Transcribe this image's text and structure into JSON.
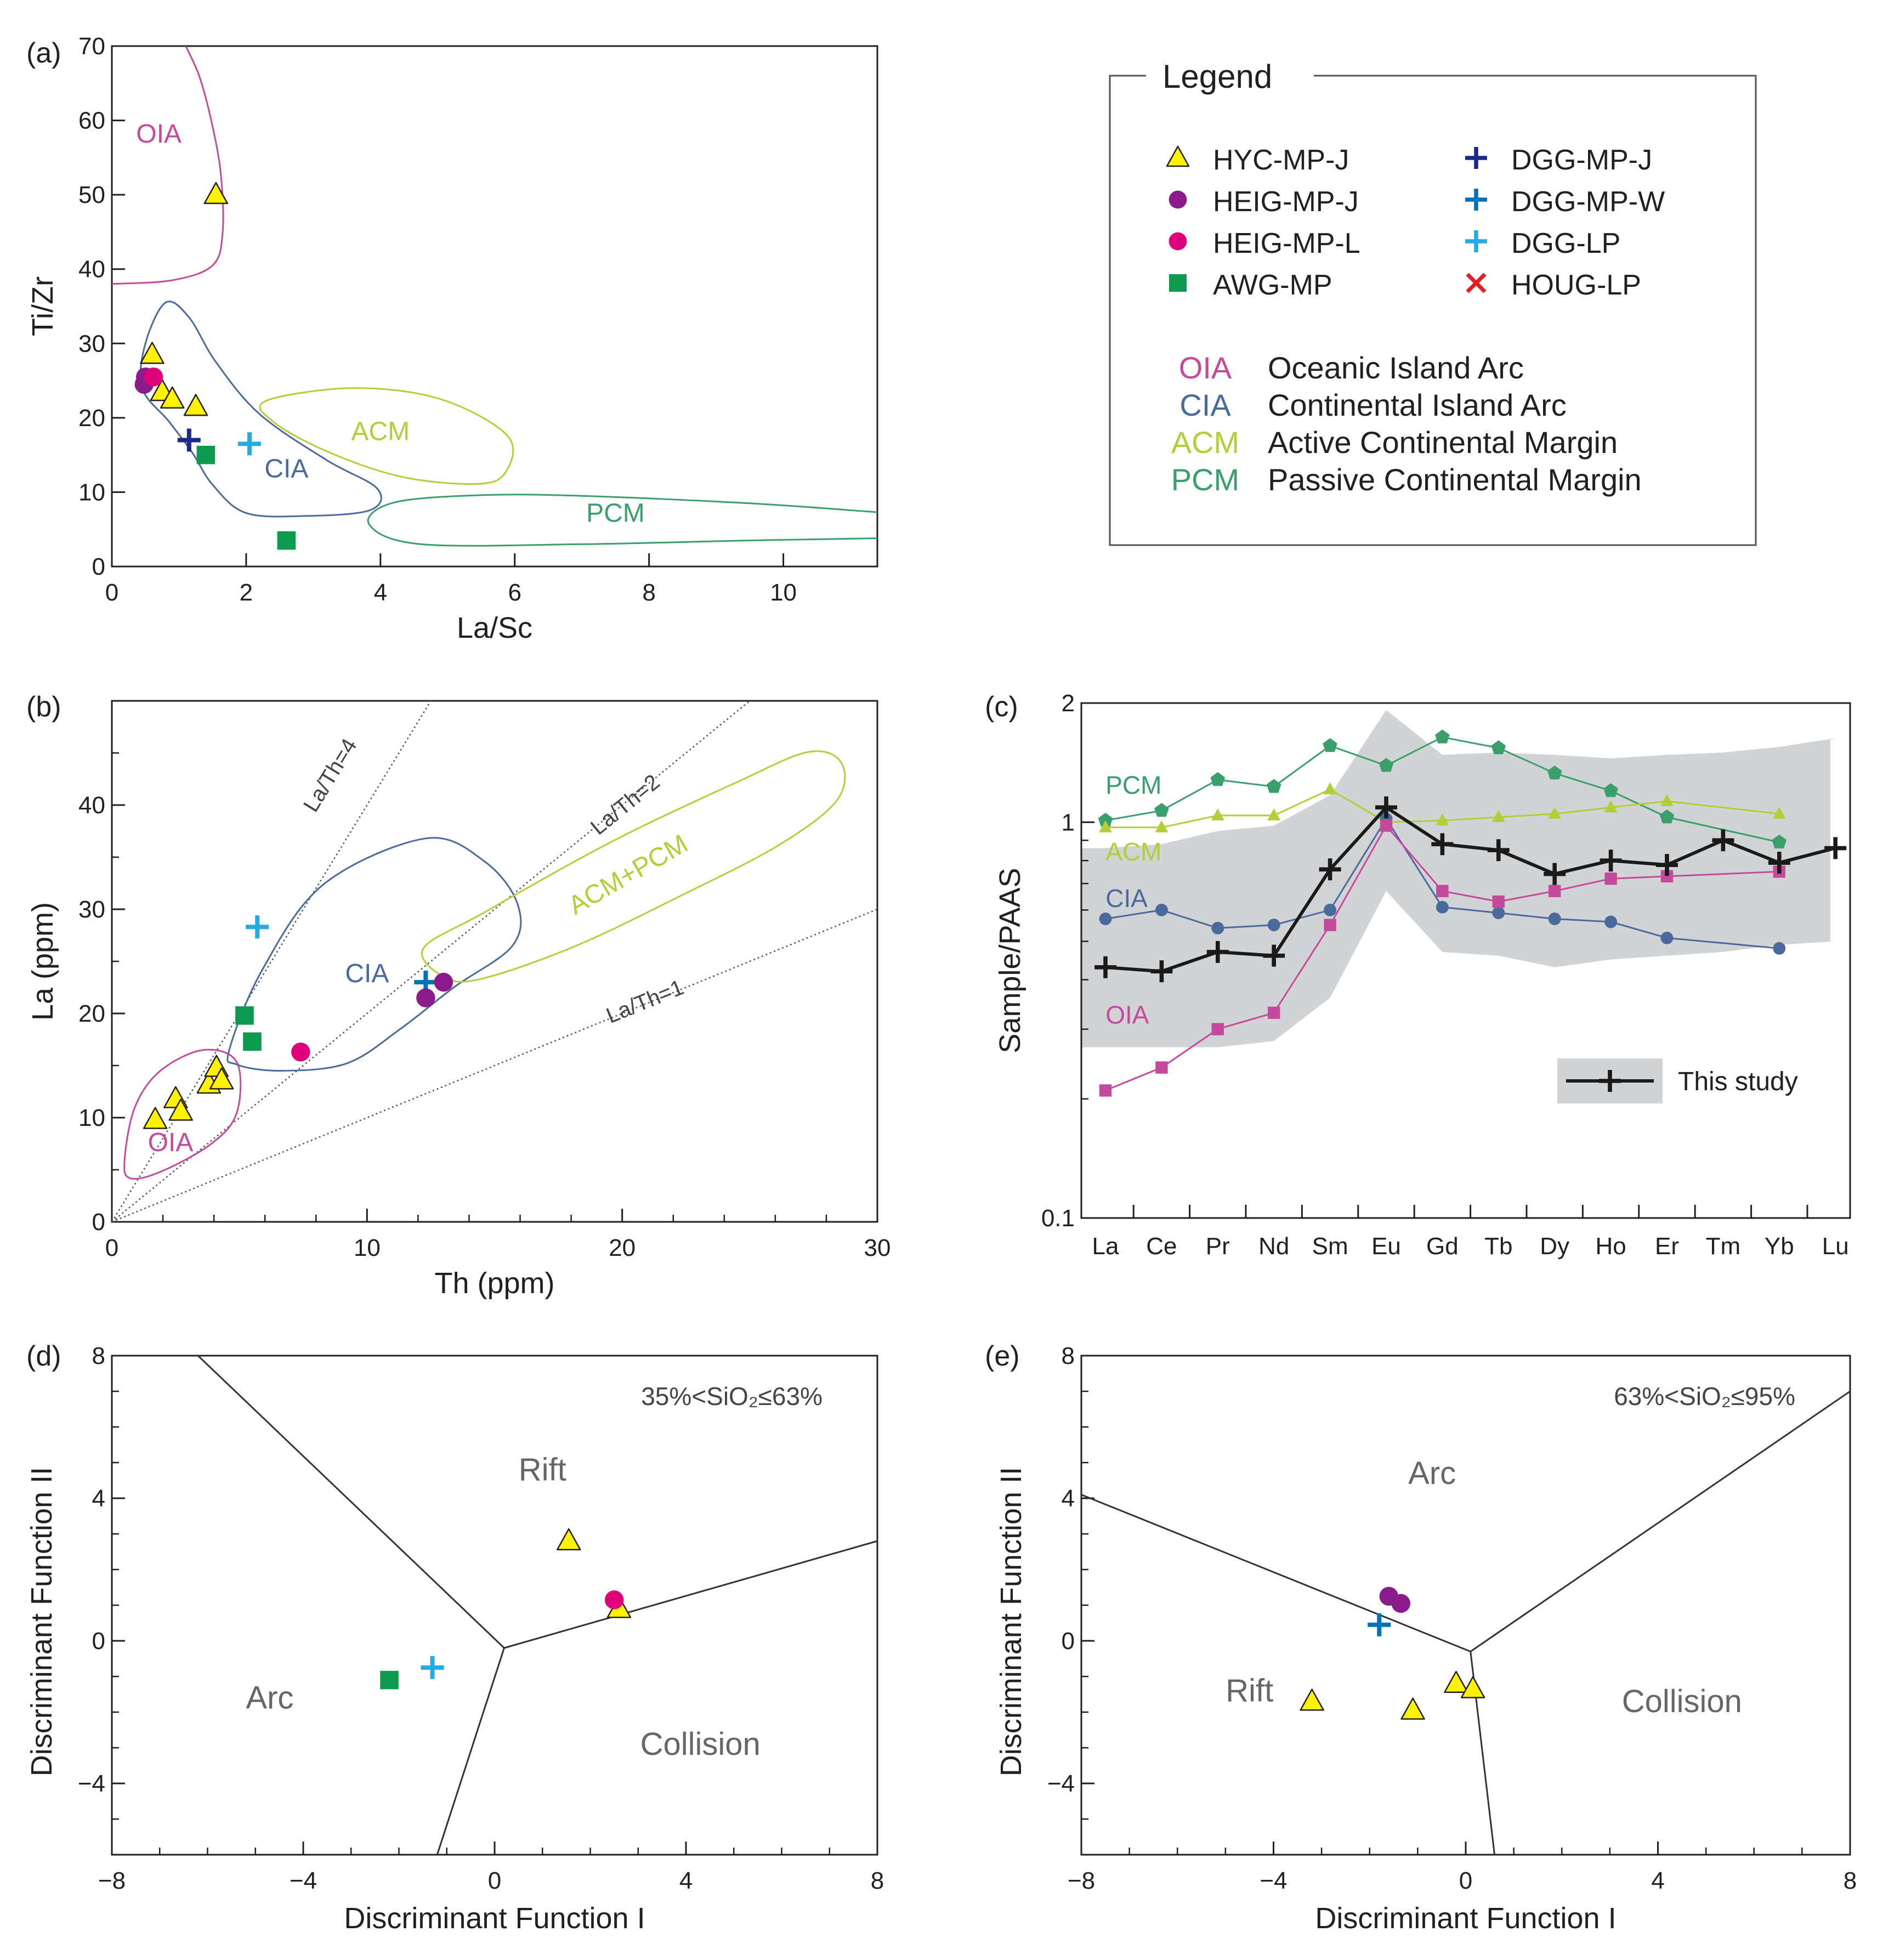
{
  "colors": {
    "hyc": "#fff200",
    "heig_j": "#8b1a8b",
    "heig_l": "#e0007a",
    "awg": "#0e9a4e",
    "dgg_j": "#1b2a87",
    "dgg_w": "#0072bc",
    "dgg_lp": "#27a9e1",
    "houg": "#e31e24",
    "oia": "#c44b9b",
    "cia": "#4a6a9e",
    "acm": "#b2cf3a",
    "pcm": "#3aa06b",
    "study": "#1a1a1a",
    "band": "#d1d3d4",
    "axis": "#231f20"
  },
  "legend": {
    "title": "Legend",
    "samples": [
      {
        "id": "hyc",
        "label": "HYC-MP-J",
        "marker": "triangle"
      },
      {
        "id": "heig_j",
        "label": "HEIG-MP-J",
        "marker": "circle"
      },
      {
        "id": "heig_l",
        "label": "HEIG-MP-L",
        "marker": "circle"
      },
      {
        "id": "awg",
        "label": "AWG-MP",
        "marker": "square"
      },
      {
        "id": "dgg_j",
        "label": "DGG-MP-J",
        "marker": "plus"
      },
      {
        "id": "dgg_w",
        "label": "DGG-MP-W",
        "marker": "plus"
      },
      {
        "id": "dgg_lp",
        "label": "DGG-LP",
        "marker": "plus"
      },
      {
        "id": "houg",
        "label": "HOUG-LP",
        "marker": "x"
      }
    ],
    "settings": [
      {
        "abbr": "OIA",
        "name": "Oceanic Island Arc",
        "color": "oia"
      },
      {
        "abbr": "CIA",
        "name": "Continental Island Arc",
        "color": "cia"
      },
      {
        "abbr": "ACM",
        "name": "Active Continental Margin",
        "color": "acm"
      },
      {
        "abbr": "PCM",
        "name": "Passive Continental Margin",
        "color": "pcm"
      }
    ]
  },
  "chart_data": [
    {
      "panel": "(a)",
      "type": "scatter",
      "xlabel": "La/Sc",
      "ylabel": "Ti/Zr",
      "xlim": [
        0,
        11.4
      ],
      "ylim": [
        0,
        70
      ],
      "xticks": [
        0,
        2,
        4,
        6,
        8,
        10
      ],
      "yticks": [
        0,
        10,
        20,
        30,
        40,
        50,
        60,
        70
      ],
      "fields": [
        {
          "label": "OIA",
          "color": "oia",
          "label_at": [
            0.7,
            57
          ]
        },
        {
          "label": "CIA",
          "color": "cia",
          "label_at": [
            2.6,
            12
          ]
        },
        {
          "label": "ACM",
          "color": "acm",
          "label_at": [
            4.0,
            17
          ]
        },
        {
          "label": "PCM",
          "color": "pcm",
          "label_at": [
            7.5,
            6
          ]
        }
      ],
      "points": [
        {
          "g": "hyc",
          "x": 1.55,
          "y": 50
        },
        {
          "g": "hyc",
          "x": 0.6,
          "y": 28.5
        },
        {
          "g": "hyc",
          "x": 0.75,
          "y": 23.5
        },
        {
          "g": "hyc",
          "x": 0.9,
          "y": 22.5
        },
        {
          "g": "hyc",
          "x": 1.25,
          "y": 21.5
        },
        {
          "g": "heig_j",
          "x": 0.48,
          "y": 24.5
        },
        {
          "g": "heig_j",
          "x": 0.5,
          "y": 25.5
        },
        {
          "g": "heig_l",
          "x": 0.62,
          "y": 25.5
        },
        {
          "g": "dgg_j",
          "x": 1.15,
          "y": 17
        },
        {
          "g": "dgg_lp",
          "x": 2.05,
          "y": 16.5
        },
        {
          "g": "awg",
          "x": 1.4,
          "y": 15
        },
        {
          "g": "awg",
          "x": 2.6,
          "y": 3.5
        }
      ]
    },
    {
      "panel": "(b)",
      "type": "scatter",
      "xlabel": "Th (ppm)",
      "ylabel": "La (ppm)",
      "xlim": [
        0,
        30
      ],
      "ylim": [
        0,
        50
      ],
      "xticks": [
        0,
        10,
        20,
        30
      ],
      "yticks": [
        0,
        10,
        20,
        30,
        40
      ],
      "ratio_lines": [
        {
          "k": 4,
          "label": "La/Th=4"
        },
        {
          "k": 2,
          "label": "La/Th=2"
        },
        {
          "k": 1,
          "label": "La/Th=1"
        }
      ],
      "fields": [
        {
          "label": "OIA",
          "color": "oia",
          "label_at": [
            2.3,
            6.8
          ]
        },
        {
          "label": "CIA",
          "color": "cia",
          "label_at": [
            10.0,
            23.0
          ]
        },
        {
          "label": "ACM+PCM",
          "color": "acm",
          "label_at": [
            20.4,
            32.6
          ]
        }
      ],
      "points": [
        {
          "g": "hyc",
          "x": 1.7,
          "y": 9.8
        },
        {
          "g": "hyc",
          "x": 2.5,
          "y": 11.8
        },
        {
          "g": "hyc",
          "x": 2.7,
          "y": 10.6
        },
        {
          "g": "hyc",
          "x": 3.8,
          "y": 13.2
        },
        {
          "g": "hyc",
          "x": 4.1,
          "y": 14.8
        },
        {
          "g": "hyc",
          "x": 4.3,
          "y": 13.6
        },
        {
          "g": "awg",
          "x": 5.2,
          "y": 19.8
        },
        {
          "g": "awg",
          "x": 5.5,
          "y": 17.3
        },
        {
          "g": "dgg_lp",
          "x": 5.7,
          "y": 28.3
        },
        {
          "g": "heig_l",
          "x": 7.4,
          "y": 16.3
        },
        {
          "g": "dgg_w",
          "x": 12.3,
          "y": 23.0
        },
        {
          "g": "heig_j",
          "x": 12.3,
          "y": 21.5
        },
        {
          "g": "heig_j",
          "x": 13.0,
          "y": 23.0
        }
      ]
    },
    {
      "panel": "(c)",
      "type": "line",
      "xlabel": "",
      "ylabel": "Sample/PAAS",
      "yscale": "log",
      "ylim": [
        0.1,
        2
      ],
      "yticks": [
        0.1,
        1,
        2
      ],
      "categories": [
        "La",
        "Ce",
        "Pr",
        "Nd",
        "Sm",
        "Eu",
        "Gd",
        "Tb",
        "Dy",
        "Ho",
        "Er",
        "Tm",
        "Yb",
        "Lu"
      ],
      "band_upper": [
        0.86,
        0.88,
        0.95,
        0.98,
        1.17,
        1.92,
        1.48,
        1.5,
        1.48,
        1.45,
        1.48,
        1.5,
        1.55,
        1.63
      ],
      "band_lower": [
        0.27,
        0.27,
        0.27,
        0.28,
        0.36,
        0.67,
        0.47,
        0.46,
        0.43,
        0.45,
        0.46,
        0.47,
        0.49,
        0.5
      ],
      "series": [
        {
          "name": "PCM",
          "color": "pcm",
          "marker": "pentagon",
          "values": [
            1.01,
            1.07,
            1.28,
            1.23,
            1.56,
            1.39,
            1.64,
            1.54,
            1.33,
            1.2,
            1.03,
            null,
            0.89,
            null
          ],
          "label_at": [
            0.1,
            1.18
          ]
        },
        {
          "name": "ACM",
          "color": "acm",
          "marker": "triangle",
          "values": [
            0.97,
            0.97,
            1.04,
            1.04,
            1.21,
            1.0,
            1.01,
            1.03,
            1.05,
            1.09,
            1.13,
            null,
            1.05,
            null
          ],
          "label_at": [
            0.1,
            0.8
          ]
        },
        {
          "name": "CIA",
          "color": "cia",
          "marker": "circle",
          "values": [
            0.57,
            0.6,
            0.54,
            0.55,
            0.6,
            1.02,
            0.61,
            0.59,
            0.57,
            0.56,
            0.51,
            null,
            0.48,
            null
          ],
          "label_at": [
            0.1,
            0.61
          ]
        },
        {
          "name": "OIA",
          "color": "oia",
          "marker": "square",
          "values": [
            0.21,
            0.24,
            0.3,
            0.33,
            0.55,
            0.98,
            0.67,
            0.63,
            0.67,
            0.72,
            0.73,
            null,
            0.75,
            null
          ],
          "label_at": [
            0.1,
            0.31
          ]
        },
        {
          "name": "This study",
          "color": "study",
          "marker": "plus",
          "values": [
            0.43,
            0.42,
            0.47,
            0.46,
            0.76,
            1.09,
            0.88,
            0.85,
            0.74,
            0.8,
            0.78,
            0.9,
            0.79,
            0.86
          ]
        }
      ],
      "legend_label": "This study"
    },
    {
      "panel": "(d)",
      "type": "scatter",
      "xlabel": "Discriminant Function I",
      "ylabel": "Discriminant Function II",
      "xlim": [
        -8,
        8
      ],
      "ylim": [
        -6,
        8
      ],
      "xticks": [
        -8,
        -4,
        0,
        4,
        8
      ],
      "yticks": [
        -4,
        0,
        4,
        8
      ],
      "annotation": "35%<SiO₂≤63%",
      "regions": [
        {
          "label": "Rift",
          "at": [
            1.0,
            4.5
          ]
        },
        {
          "label": "Arc",
          "at": [
            -4.7,
            -1.9
          ]
        },
        {
          "label": "Collision",
          "at": [
            4.3,
            -3.2
          ]
        }
      ],
      "boundaries": [
        [
          [
            -6.2,
            8
          ],
          [
            0.2,
            -0.2
          ]
        ],
        [
          [
            0.2,
            -0.2
          ],
          [
            8,
            2.8
          ]
        ],
        [
          [
            0.2,
            -0.2
          ],
          [
            -1.2,
            -6
          ]
        ]
      ],
      "points": [
        {
          "g": "hyc",
          "x": 1.55,
          "y": 2.8
        },
        {
          "g": "hyc",
          "x": 2.6,
          "y": 0.9
        },
        {
          "g": "heig_l",
          "x": 2.5,
          "y": 1.15
        },
        {
          "g": "awg",
          "x": -2.2,
          "y": -1.1
        },
        {
          "g": "dgg_lp",
          "x": -1.3,
          "y": -0.75
        }
      ]
    },
    {
      "panel": "(e)",
      "type": "scatter",
      "xlabel": "Discriminant Function I",
      "ylabel": "Discriminant Function II",
      "xlim": [
        -8,
        8
      ],
      "ylim": [
        -6,
        8
      ],
      "xticks": [
        -8,
        -4,
        0,
        4,
        8
      ],
      "yticks": [
        -4,
        0,
        4,
        8
      ],
      "annotation": "63%<SiO₂≤95%",
      "regions": [
        {
          "label": "Arc",
          "at": [
            -0.7,
            4.4
          ]
        },
        {
          "label": "Rift",
          "at": [
            -4.5,
            -1.7
          ]
        },
        {
          "label": "Collision",
          "at": [
            4.5,
            -2.0
          ]
        }
      ],
      "boundaries": [
        [
          [
            -8,
            4.1
          ],
          [
            0.1,
            -0.3
          ]
        ],
        [
          [
            0.1,
            -0.3
          ],
          [
            8,
            7.0
          ]
        ],
        [
          [
            0.1,
            -0.3
          ],
          [
            0.6,
            -6
          ]
        ]
      ],
      "points": [
        {
          "g": "heig_j",
          "x": -1.6,
          "y": 1.25
        },
        {
          "g": "heig_j",
          "x": -1.35,
          "y": 1.05
        },
        {
          "g": "dgg_w",
          "x": -1.8,
          "y": 0.45
        },
        {
          "g": "hyc",
          "x": -3.2,
          "y": -1.7
        },
        {
          "g": "hyc",
          "x": -1.1,
          "y": -1.95
        },
        {
          "g": "hyc",
          "x": -0.2,
          "y": -1.2
        },
        {
          "g": "hyc",
          "x": 0.15,
          "y": -1.35
        }
      ]
    }
  ]
}
